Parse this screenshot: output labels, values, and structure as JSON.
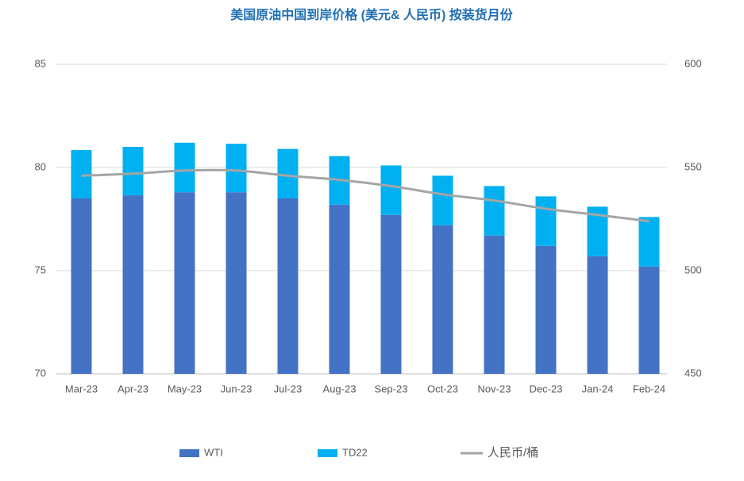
{
  "chart_data": {
    "type": "bar",
    "stacked": true,
    "title": "美国原油中国到岸价格 (美元& 人民币) 按装货月份",
    "categories": [
      "Mar-23",
      "Apr-23",
      "May-23",
      "Jun-23",
      "Jul-23",
      "Aug-23",
      "Sep-23",
      "Oct-23",
      "Nov-23",
      "Dec-23",
      "Jan-24",
      "Feb-24"
    ],
    "series": [
      {
        "name": "WTI",
        "type": "bar",
        "color": "#4472c4",
        "values": [
          78.5,
          78.65,
          78.8,
          78.8,
          78.5,
          78.2,
          77.7,
          77.2,
          76.7,
          76.2,
          75.7,
          75.2
        ]
      },
      {
        "name": "TD22",
        "type": "bar",
        "color": "#00b0f0",
        "values": [
          2.35,
          2.35,
          2.4,
          2.35,
          2.4,
          2.35,
          2.4,
          2.4,
          2.4,
          2.4,
          2.4,
          2.4
        ]
      },
      {
        "name": "人民币/桶",
        "type": "line",
        "axis": "y2",
        "color": "#a5a5a5",
        "values": [
          546,
          547,
          548.5,
          548.5,
          546,
          544,
          541,
          537,
          534,
          530,
          527,
          524
        ]
      }
    ],
    "ylim": [
      70,
      85
    ],
    "yticks": [
      70,
      75,
      80,
      85
    ],
    "y2lim": [
      450,
      600
    ],
    "y2ticks": [
      450,
      500,
      550,
      600
    ],
    "grid": true,
    "legend": "bottom"
  }
}
